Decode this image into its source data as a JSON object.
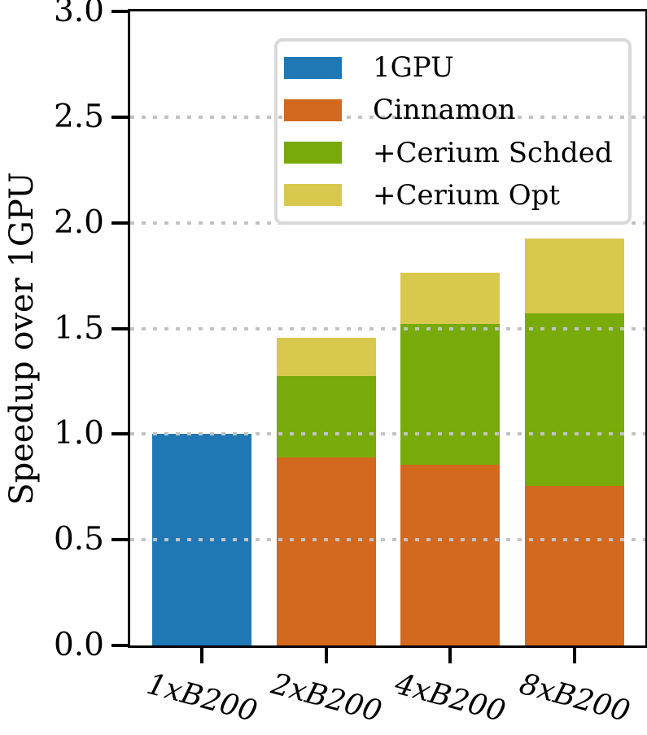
{
  "chart_data": {
    "type": "bar",
    "stacked": true,
    "title": "",
    "xlabel": "",
    "ylabel": "Speedup over 1GPU",
    "ylim": [
      0,
      3.0
    ],
    "yticks": [
      "0.0",
      "0.5",
      "1.0",
      "1.5",
      "2.0",
      "2.5",
      "3.0"
    ],
    "categories": [
      "1xB200",
      "2xB200",
      "4xB200",
      "8xB200"
    ],
    "series": [
      {
        "name": "1GPU",
        "color": "#1f77b4",
        "values": [
          1.0,
          0,
          0,
          0
        ]
      },
      {
        "name": "Cinnamon",
        "color": "#d2691e",
        "values": [
          0,
          0.89,
          0.855,
          0.755
        ]
      },
      {
        "name": "+Cerium Schded",
        "color": "#78aa0a",
        "values": [
          0,
          0.385,
          0.665,
          0.815
        ]
      },
      {
        "name": "+Cerium Opt",
        "color": "#d9c84e",
        "values": [
          0,
          0.18,
          0.245,
          0.355
        ]
      }
    ],
    "stack_totals": [
      1.0,
      1.455,
      1.765,
      1.925
    ],
    "legend": {
      "position": "upper left",
      "entries": [
        "1GPU",
        "Cinnamon",
        "+Cerium Schded",
        "+Cerium Opt"
      ]
    },
    "grid": {
      "axis": "y",
      "style": "dotted",
      "color": "#c3c3c3",
      "above_bars": true
    }
  }
}
